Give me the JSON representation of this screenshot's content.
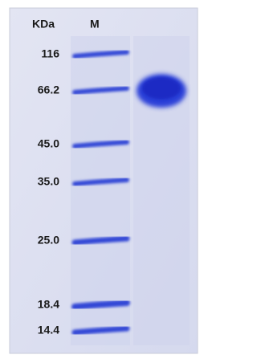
{
  "header": {
    "unit": "KDa",
    "marker_lane": "M"
  },
  "markers": [
    {
      "label": "116"
    },
    {
      "label": "66.2"
    },
    {
      "label": "45.0"
    },
    {
      "label": "35.0"
    },
    {
      "label": "25.0"
    },
    {
      "label": "18.4"
    },
    {
      "label": "14.4"
    }
  ]
}
